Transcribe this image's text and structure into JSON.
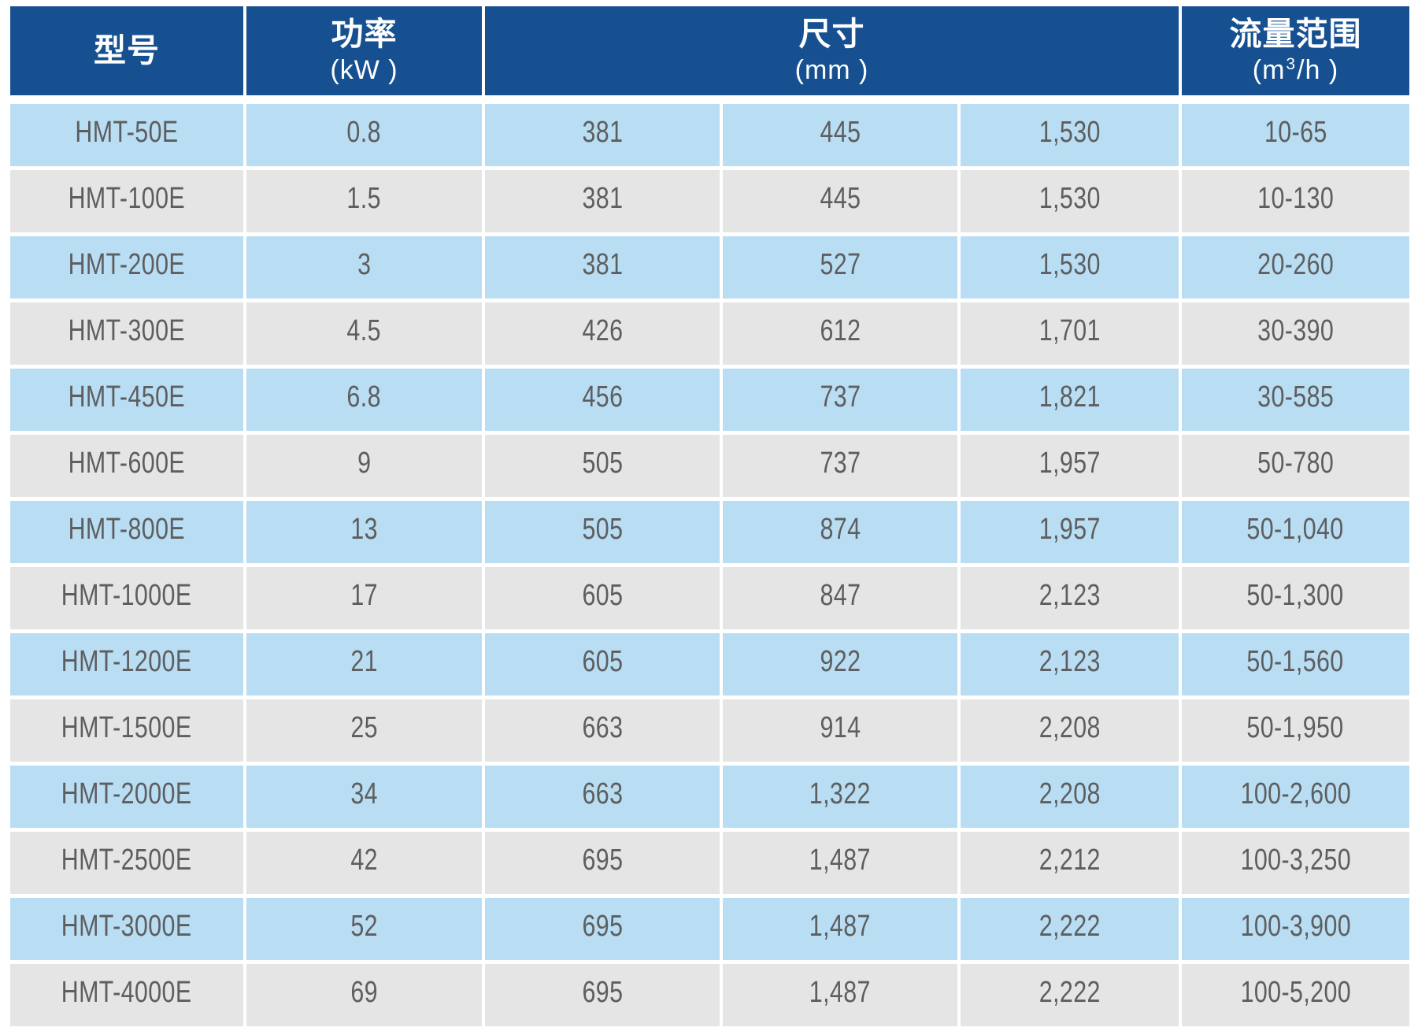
{
  "table": {
    "header": {
      "model_title": "型号",
      "power_title": "功率",
      "power_unit": "(kW )",
      "dims_title": "尺寸",
      "dims_unit": "(mm )",
      "flow_title": "流量范围",
      "flow_unit_open": "(m",
      "flow_unit_sup": "3",
      "flow_unit_close": "/h )"
    },
    "columns": [
      "model",
      "power",
      "dim1",
      "dim2",
      "dim3",
      "flow"
    ],
    "rows": [
      {
        "model": "HMT-50E",
        "power": "0.8",
        "dim1": "381",
        "dim2": "445",
        "dim3": "1,530",
        "flow": "10-65"
      },
      {
        "model": "HMT-100E",
        "power": "1.5",
        "dim1": "381",
        "dim2": "445",
        "dim3": "1,530",
        "flow": "10-130"
      },
      {
        "model": "HMT-200E",
        "power": "3",
        "dim1": "381",
        "dim2": "527",
        "dim3": "1,530",
        "flow": "20-260"
      },
      {
        "model": "HMT-300E",
        "power": "4.5",
        "dim1": "426",
        "dim2": "612",
        "dim3": "1,701",
        "flow": "30-390"
      },
      {
        "model": "HMT-450E",
        "power": "6.8",
        "dim1": "456",
        "dim2": "737",
        "dim3": "1,821",
        "flow": "30-585"
      },
      {
        "model": "HMT-600E",
        "power": "9",
        "dim1": "505",
        "dim2": "737",
        "dim3": "1,957",
        "flow": "50-780"
      },
      {
        "model": "HMT-800E",
        "power": "13",
        "dim1": "505",
        "dim2": "874",
        "dim3": "1,957",
        "flow": "50-1,040"
      },
      {
        "model": "HMT-1000E",
        "power": "17",
        "dim1": "605",
        "dim2": "847",
        "dim3": "2,123",
        "flow": "50-1,300"
      },
      {
        "model": "HMT-1200E",
        "power": "21",
        "dim1": "605",
        "dim2": "922",
        "dim3": "2,123",
        "flow": "50-1,560"
      },
      {
        "model": "HMT-1500E",
        "power": "25",
        "dim1": "663",
        "dim2": "914",
        "dim3": "2,208",
        "flow": "50-1,950"
      },
      {
        "model": "HMT-2000E",
        "power": "34",
        "dim1": "663",
        "dim2": "1,322",
        "dim3": "2,208",
        "flow": "100-2,600"
      },
      {
        "model": "HMT-2500E",
        "power": "42",
        "dim1": "695",
        "dim2": "1,487",
        "dim3": "2,212",
        "flow": "100-3,250"
      },
      {
        "model": "HMT-3000E",
        "power": "52",
        "dim1": "695",
        "dim2": "1,487",
        "dim3": "2,222",
        "flow": "100-3,900"
      },
      {
        "model": "HMT-4000E",
        "power": "69",
        "dim1": "695",
        "dim2": "1,487",
        "dim3": "2,222",
        "flow": "100-5,200"
      }
    ],
    "colors": {
      "header_blue": "#175091",
      "row_blue": "#b9ddf2",
      "row_gray": "#e5e5e5",
      "cell_text": "#5d5e60",
      "header_text": "#ffffff"
    }
  }
}
